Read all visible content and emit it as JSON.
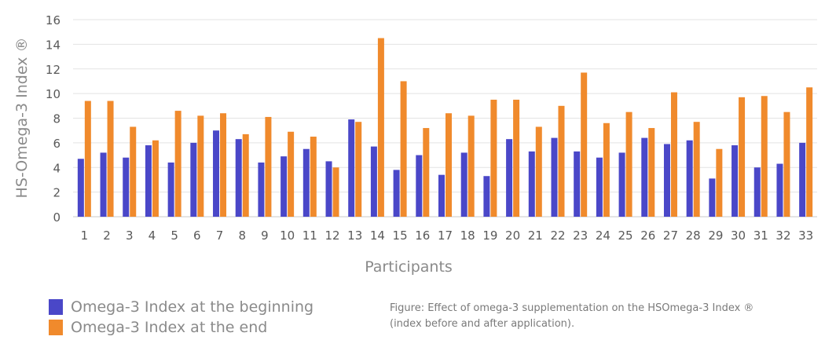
{
  "chart_data": {
    "type": "bar",
    "xlabel": "Participants",
    "ylabel": "HS-Omega-3 Index ®",
    "ylim": [
      0,
      16
    ],
    "yticks": [
      0,
      2,
      4,
      6,
      8,
      10,
      12,
      14,
      16
    ],
    "grid": true,
    "legend_position": "bottom-left",
    "categories": [
      "1",
      "2",
      "3",
      "4",
      "5",
      "6",
      "7",
      "8",
      "9",
      "10",
      "11",
      "12",
      "13",
      "14",
      "15",
      "16",
      "17",
      "18",
      "19",
      "20",
      "21",
      "22",
      "23",
      "24",
      "25",
      "26",
      "27",
      "28",
      "29",
      "30",
      "31",
      "32",
      "33"
    ],
    "series": [
      {
        "name": "Omega-3 Index at the beginning",
        "color": "#4a47c8",
        "values": [
          4.7,
          5.2,
          4.8,
          5.8,
          4.4,
          6.0,
          7.0,
          6.3,
          4.4,
          4.9,
          5.5,
          4.5,
          7.9,
          5.7,
          3.8,
          5.0,
          3.4,
          5.2,
          3.3,
          6.3,
          5.3,
          6.4,
          5.3,
          4.8,
          5.2,
          6.4,
          5.9,
          6.2,
          3.1,
          5.8,
          4.0,
          4.3,
          6.0
        ]
      },
      {
        "name": "Omega-3 Index at the end",
        "color": "#f08a2c",
        "values": [
          9.4,
          9.4,
          7.3,
          6.2,
          8.6,
          8.2,
          8.4,
          6.7,
          8.1,
          6.9,
          6.5,
          4.0,
          7.7,
          14.5,
          11.0,
          7.2,
          8.4,
          8.2,
          9.5,
          9.5,
          7.3,
          9.0,
          11.7,
          7.6,
          8.5,
          7.2,
          10.1,
          7.7,
          5.5,
          9.7,
          9.8,
          8.5,
          10.5
        ]
      }
    ]
  },
  "caption": {
    "line1": "Figure: Effect of omega-3 supplementation on the HSOmega-3 Index ®",
    "line2": "(index before and after application)."
  }
}
